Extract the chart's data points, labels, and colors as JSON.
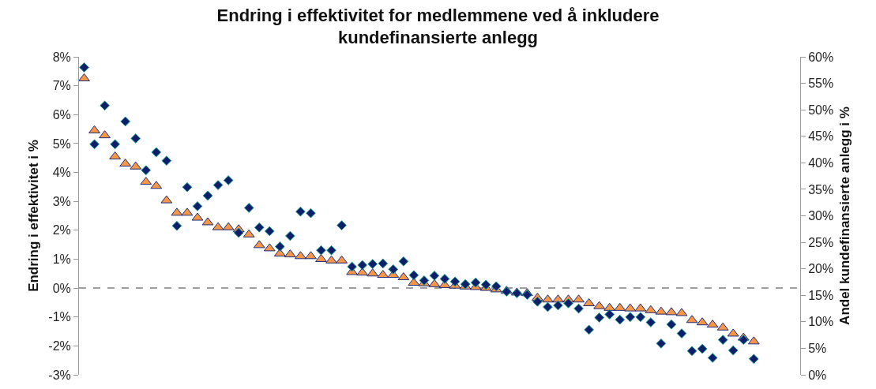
{
  "chart_data": {
    "type": "scatter",
    "title": "Endring i effektivitet for medlemmene ved å inkludere kundefinansierte anlegg",
    "ylabel": "Endring i effektivitet i %",
    "y2label": "Andel kundefinansierte anlegg i %",
    "categories": [
      null,
      null,
      null,
      null,
      null,
      null,
      null,
      null,
      null,
      null,
      null,
      null,
      null,
      null,
      null,
      null,
      null,
      null,
      null,
      null,
      null,
      null,
      null,
      null,
      null,
      null,
      null,
      null,
      null,
      null,
      null,
      null,
      null,
      null,
      null,
      null,
      null,
      null,
      null,
      null,
      null,
      null,
      null,
      null,
      null,
      null,
      null,
      null,
      null,
      null,
      null,
      null,
      null,
      null,
      null,
      null,
      null,
      null,
      null,
      null,
      null,
      null,
      null,
      null,
      null,
      null,
      null,
      null,
      null,
      null
    ],
    "series": [
      {
        "color": "#f79646",
        "marker": "triangle",
        "values": [
          7.25,
          5.45,
          5.28,
          4.55,
          4.3,
          4.2,
          3.67,
          3.53,
          3.03,
          2.6,
          2.6,
          2.43,
          2.27,
          2.1,
          2.1,
          2.03,
          1.85,
          1.48,
          1.37,
          1.19,
          1.16,
          1.1,
          1.1,
          1.0,
          0.95,
          0.95,
          0.55,
          0.53,
          0.5,
          0.45,
          0.45,
          0.37,
          0.18,
          0.16,
          0.13,
          0.1,
          0.08,
          0.05,
          0.03,
          0.0,
          -0.05,
          -0.1,
          -0.16,
          -0.18,
          -0.34,
          -0.4,
          -0.4,
          -0.4,
          -0.4,
          -0.53,
          -0.63,
          -0.69,
          -0.69,
          -0.71,
          -0.71,
          -0.77,
          -0.82,
          -0.84,
          -0.87,
          -1.11,
          -1.19,
          -1.27,
          -1.37,
          -1.58,
          -1.72,
          -1.85,
          null,
          null,
          null,
          null
        ]
      },
      {
        "color": "#0d1f6b",
        "marker": "diamond",
        "axis": "y2",
        "values": [
          58.0,
          43.5,
          50.8,
          43.5,
          47.8,
          44.6,
          38.6,
          42.0,
          40.4,
          28.1,
          35.4,
          31.8,
          33.8,
          35.8,
          36.7,
          26.8,
          31.5,
          27.8,
          27.1,
          24.2,
          26.2,
          30.8,
          30.5,
          23.5,
          23.5,
          28.2,
          20.4,
          20.7,
          20.9,
          21.0,
          19.9,
          21.4,
          18.8,
          17.8,
          18.7,
          18.1,
          17.6,
          17.1,
          17.4,
          17.0,
          16.7,
          15.7,
          15.4,
          15.1,
          13.8,
          12.8,
          13.1,
          13.5,
          12.5,
          8.5,
          10.8,
          11.4,
          10.4,
          10.9,
          10.9,
          9.9,
          5.9,
          9.5,
          7.8,
          4.5,
          4.9,
          3.2,
          6.6,
          4.6,
          6.6,
          3.0,
          null,
          null,
          null,
          null
        ]
      }
    ],
    "ylim": [
      -3,
      8
    ],
    "yticks": [
      {
        "value": -3,
        "label": "-3%"
      },
      {
        "value": -2,
        "label": "-2%"
      },
      {
        "value": -1,
        "label": "-1%"
      },
      {
        "value": 0,
        "label": "0%"
      },
      {
        "value": 1,
        "label": "1%"
      },
      {
        "value": 2,
        "label": "2%"
      },
      {
        "value": 3,
        "label": "3%"
      },
      {
        "value": 4,
        "label": "4%"
      },
      {
        "value": 5,
        "label": "5%"
      },
      {
        "value": 6,
        "label": "6%"
      },
      {
        "value": 7,
        "label": "7%"
      },
      {
        "value": 8,
        "label": "8%"
      }
    ],
    "y2lim": [
      0,
      60
    ],
    "y2ticks": [
      {
        "value": 0,
        "label": "0%"
      },
      {
        "value": 5,
        "label": "5%"
      },
      {
        "value": 10,
        "label": "10%"
      },
      {
        "value": 15,
        "label": "15%"
      },
      {
        "value": 20,
        "label": "20%"
      },
      {
        "value": 25,
        "label": "25%"
      },
      {
        "value": 30,
        "label": "30%"
      },
      {
        "value": 35,
        "label": "35%"
      },
      {
        "value": 40,
        "label": "40%"
      },
      {
        "value": 45,
        "label": "45%"
      },
      {
        "value": 50,
        "label": "50%"
      },
      {
        "value": 55,
        "label": "55%"
      },
      {
        "value": 60,
        "label": "60%"
      }
    ],
    "ref_lines": [
      {
        "axis": "y",
        "value": 0,
        "color": "#808080",
        "line_style": "dashed"
      }
    ],
    "grid": false
  }
}
